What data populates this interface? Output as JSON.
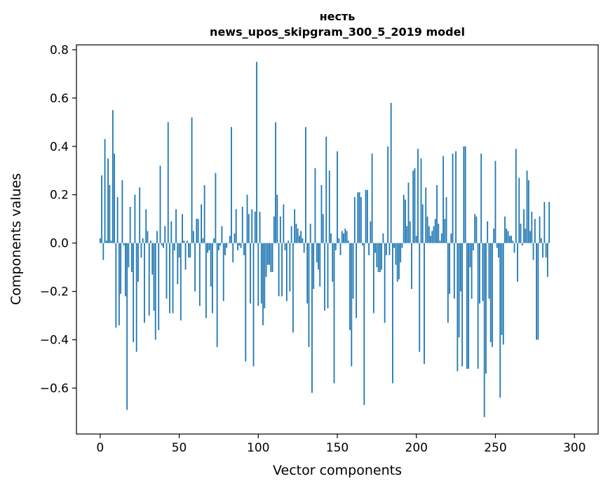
{
  "chart_data": {
    "type": "bar",
    "title_line1": "несть",
    "title_line2": "news_upos_skipgram_300_5_2019 model",
    "xlabel": "Vector components",
    "ylabel": "Components values",
    "xlim": [
      -15,
      315
    ],
    "ylim": [
      -0.79,
      0.82
    ],
    "x_ticks": [
      0,
      50,
      100,
      150,
      200,
      250,
      300
    ],
    "y_ticks": [
      -0.6,
      -0.4,
      -0.2,
      0.0,
      0.2,
      0.4,
      0.6,
      0.8
    ],
    "x_tick_labels": [
      "0",
      "50",
      "100",
      "150",
      "200",
      "250",
      "300"
    ],
    "y_tick_labels": [
      "−0.6",
      "−0.4",
      "−0.2",
      "0.0",
      "0.2",
      "0.4",
      "0.6",
      "0.8"
    ],
    "bar_color": "#1f77b4",
    "values": [
      0.02,
      0.28,
      -0.07,
      0.43,
      0.01,
      0.35,
      0.24,
      0.01,
      0.55,
      0.37,
      -0.35,
      0.19,
      -0.34,
      -0.21,
      0.26,
      -0.01,
      -0.22,
      -0.69,
      -0.1,
      0.15,
      -0.12,
      -0.41,
      0.2,
      -0.45,
      -0.16,
      0.23,
      -0.06,
      0.02,
      -0.33,
      0.14,
      0.05,
      -0.3,
      0.01,
      -0.13,
      -0.28,
      -0.4,
      0.05,
      -0.36,
      0.32,
      -0.01,
      -0.02,
      0.07,
      -0.23,
      0.5,
      -0.29,
      0.09,
      -0.29,
      -0.03,
      0.14,
      -0.17,
      -0.06,
      -0.32,
      0.12,
      0.01,
      -0.11,
      0.01,
      -0.06,
      -0.06,
      0.52,
      0.05,
      -0.2,
      0.1,
      0.1,
      -0.26,
      0.16,
      0.02,
      0.24,
      -0.31,
      -0.04,
      -0.03,
      -0.18,
      -0.29,
      0.02,
      0.29,
      -0.43,
      -0.03,
      -0.01,
      0.07,
      -0.24,
      -0.05,
      -0.02,
      0.0,
      0.03,
      0.48,
      -0.08,
      0.04,
      0.14,
      -0.03,
      -0.01,
      -0.02,
      0.15,
      -0.05,
      -0.49,
      0.2,
      0.12,
      -0.25,
      0.14,
      -0.51,
      0.13,
      0.75,
      -0.26,
      0.13,
      -0.25,
      -0.34,
      -0.27,
      -0.14,
      -0.09,
      -0.09,
      -0.12,
      -0.12,
      0.11,
      0.5,
      0.2,
      -0.22,
      0.11,
      -0.22,
      0.16,
      -0.03,
      -0.24,
      0.01,
      -0.2,
      0.07,
      -0.37,
      0.14,
      0.08,
      0.06,
      0.03,
      0.05,
      0.02,
      -0.04,
      0.48,
      -0.25,
      -0.43,
      0.08,
      -0.62,
      -0.19,
      0.31,
      -0.08,
      -0.11,
      -0.18,
      0.24,
      0.12,
      -0.28,
      0.44,
      -0.27,
      0.3,
      0.04,
      -0.16,
      -0.58,
      -0.03,
      0.38,
      0.02,
      -0.05,
      0.05,
      0.04,
      0.06,
      0.05,
      0.01,
      -0.36,
      -0.51,
      -0.23,
      0.19,
      -0.31,
      0.21,
      0.21,
      0.19,
      -0.01,
      -0.67,
      0.22,
      0.22,
      -0.05,
      0.09,
      0.37,
      -0.29,
      -0.04,
      -0.1,
      -0.12,
      -0.12,
      -0.11,
      0.04,
      -0.33,
      -0.05,
      0.4,
      -0.05,
      0.58,
      -0.58,
      -0.02,
      -0.09,
      -0.16,
      -0.15,
      -0.08,
      -0.02,
      0.2,
      0.18,
      0.07,
      0.25,
      0.09,
      -0.19,
      0.3,
      0.31,
      0.03,
      0.39,
      -0.45,
      0.35,
      0.16,
      -0.5,
      0.23,
      0.11,
      0.07,
      0.03,
      0.05,
      0.07,
      0.1,
      0.24,
      0.08,
      0.01,
      0.04,
      0.36,
      0.1,
      0.19,
      -0.33,
      -0.21,
      0.04,
      0.37,
      -0.23,
      0.38,
      -0.53,
      -0.39,
      -0.2,
      -0.51,
      0.4,
      0.4,
      -0.52,
      -0.52,
      -0.1,
      -0.23,
      -0.03,
      0.12,
      0.11,
      -0.52,
      -0.25,
      0.37,
      -0.24,
      -0.72,
      -0.54,
      0.09,
      -0.23,
      -0.41,
      -0.43,
      0.06,
      0.34,
      -0.02,
      -0.06,
      -0.64,
      -0.38,
      -0.42,
      0.11,
      0.06,
      0.05,
      0.03,
      0.03,
      0.01,
      -0.04,
      0.39,
      -0.16,
      0.27,
      0.08,
      -0.01,
      0.14,
      0.06,
      0.3,
      0.26,
      0.05,
      0.13,
      -0.07,
      0.1,
      -0.4,
      -0.4,
      0.11,
      0.02,
      -0.06,
      0.17,
      -0.06,
      -0.14,
      0.17
    ]
  }
}
